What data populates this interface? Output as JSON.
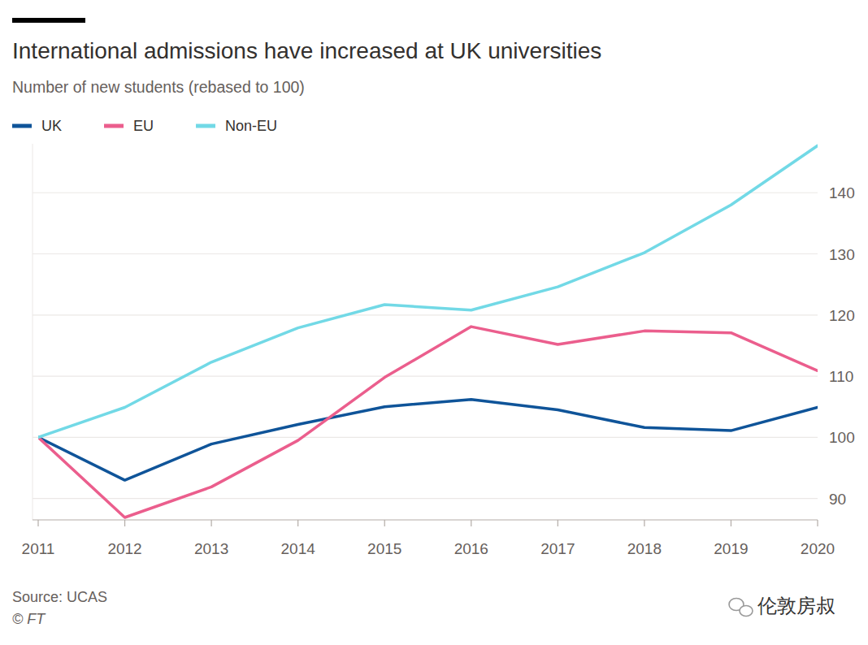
{
  "chart_data": {
    "type": "line",
    "title": "International admissions have increased at UK universities",
    "subtitle": "Number of new students (rebased to 100)",
    "source": "Source: UCAS",
    "credit": "© FT",
    "watermark": "伦敦房叔",
    "x": [
      2011,
      2012,
      2013,
      2014,
      2015,
      2016,
      2017,
      2018,
      2019,
      2020
    ],
    "xlim": [
      2011,
      2020
    ],
    "xticks": [
      2011,
      2012,
      2013,
      2014,
      2015,
      2016,
      2017,
      2018,
      2019,
      2020
    ],
    "ylim": [
      86.5,
      148
    ],
    "yticks": [
      90,
      100,
      110,
      120,
      130,
      140
    ],
    "grid": true,
    "legend": "top-left",
    "series": [
      {
        "name": "UK",
        "color": "#0f5499",
        "values": [
          100,
          93.0,
          98.9,
          102.1,
          105.0,
          106.2,
          104.5,
          101.6,
          101.1,
          104.9
        ]
      },
      {
        "name": "EU",
        "color": "#eb5e8d",
        "values": [
          100,
          86.9,
          91.9,
          99.5,
          109.8,
          118.1,
          115.2,
          117.4,
          117.1,
          110.9
        ]
      },
      {
        "name": "Non-EU",
        "color": "#72d9e6",
        "values": [
          100,
          104.9,
          112.3,
          117.9,
          121.7,
          120.8,
          124.6,
          130.2,
          138.0,
          147.7
        ]
      }
    ]
  }
}
